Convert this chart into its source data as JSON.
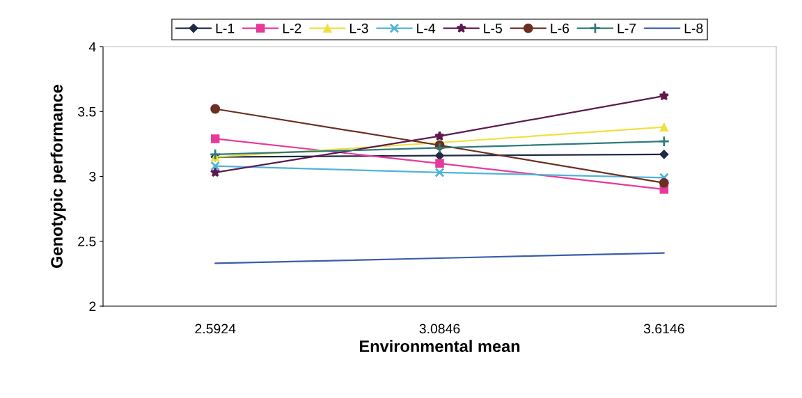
{
  "chart_data": {
    "type": "line",
    "xlabel": "Environmental mean",
    "ylabel": "Genotypic performance",
    "categories": [
      "2.5924",
      "3.0846",
      "3.6146"
    ],
    "ylim": [
      2,
      4
    ],
    "yticks": [
      2,
      2.5,
      3,
      3.5,
      4
    ],
    "grid": false,
    "legend": "top",
    "series": [
      {
        "name": "L-1",
        "color": "#1f2a44",
        "marker": "diamond",
        "values": [
          3.15,
          3.16,
          3.17
        ]
      },
      {
        "name": "L-2",
        "color": "#e8399a",
        "marker": "square",
        "values": [
          3.29,
          3.1,
          2.9
        ]
      },
      {
        "name": "L-3",
        "color": "#f0e040",
        "marker": "triangle",
        "values": [
          3.15,
          3.26,
          3.38
        ]
      },
      {
        "name": "L-4",
        "color": "#4fb3d9",
        "marker": "cross",
        "values": [
          3.08,
          3.03,
          2.99
        ]
      },
      {
        "name": "L-5",
        "color": "#5c1a4f",
        "marker": "star",
        "values": [
          3.03,
          3.31,
          3.62
        ]
      },
      {
        "name": "L-6",
        "color": "#6b2e22",
        "marker": "circle",
        "values": [
          3.52,
          3.24,
          2.95
        ]
      },
      {
        "name": "L-7",
        "color": "#2e7b78",
        "marker": "plus",
        "values": [
          3.17,
          3.22,
          3.27
        ]
      },
      {
        "name": "L-8",
        "color": "#3a5da8",
        "marker": "none",
        "values": [
          2.33,
          2.37,
          2.41
        ]
      }
    ]
  }
}
